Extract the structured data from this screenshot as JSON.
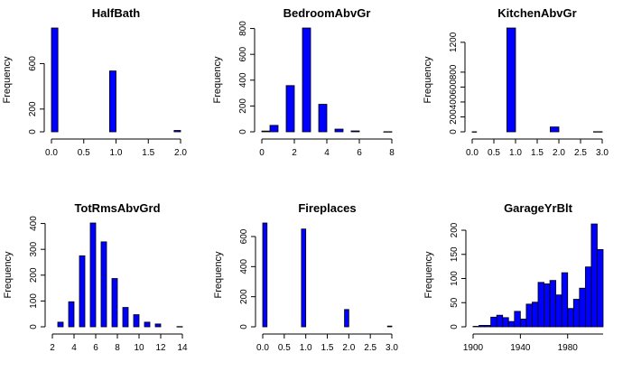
{
  "colors": {
    "bar_fill": "#0000ff",
    "bar_stroke": "#000000",
    "axis": "#000000"
  },
  "chart_data": [
    {
      "type": "bar",
      "title": "HalfBath",
      "xlabel": "",
      "ylabel": "Frequency",
      "xlim": [
        0,
        2
      ],
      "ylim": [
        0,
        913
      ],
      "xticks": [
        "0.0",
        "0.5",
        "1.0",
        "1.5",
        "2.0"
      ],
      "yticks": [
        "0",
        "200",
        "600"
      ],
      "bins": [
        {
          "x0": 0.0,
          "x1": 0.1,
          "count": 913
        },
        {
          "x0": 0.9,
          "x1": 1.0,
          "count": 535
        },
        {
          "x0": 1.9,
          "x1": 2.0,
          "count": 12
        }
      ]
    },
    {
      "type": "bar",
      "title": "BedroomAbvGr",
      "xlabel": "",
      "ylabel": "Frequency",
      "xlim": [
        0,
        8
      ],
      "ylim": [
        0,
        804
      ],
      "xticks": [
        "0",
        "2",
        "4",
        "6",
        "8"
      ],
      "yticks": [
        "0",
        "200",
        "400",
        "600",
        "800"
      ],
      "bins": [
        {
          "x0": 0.0,
          "x1": 0.5,
          "count": 6
        },
        {
          "x0": 0.5,
          "x1": 1.0,
          "count": 50
        },
        {
          "x0": 1.5,
          "x1": 2.0,
          "count": 358
        },
        {
          "x0": 2.5,
          "x1": 3.0,
          "count": 804
        },
        {
          "x0": 3.5,
          "x1": 4.0,
          "count": 213
        },
        {
          "x0": 4.5,
          "x1": 5.0,
          "count": 21
        },
        {
          "x0": 5.5,
          "x1": 6.0,
          "count": 7
        },
        {
          "x0": 7.5,
          "x1": 8.0,
          "count": 1
        }
      ]
    },
    {
      "type": "bar",
      "title": "KitchenAbvGr",
      "xlabel": "",
      "ylabel": "Frequency",
      "xlim": [
        0,
        3
      ],
      "ylim": [
        0,
        1392
      ],
      "xticks": [
        "0.0",
        "0.5",
        "1.0",
        "1.5",
        "2.0",
        "2.5",
        "3.0"
      ],
      "yticks": [
        "0",
        "200",
        "400",
        "600",
        "800",
        "1200"
      ],
      "bins": [
        {
          "x0": 0.0,
          "x1": 0.1,
          "count": 1
        },
        {
          "x0": 0.8,
          "x1": 1.0,
          "count": 1392
        },
        {
          "x0": 1.8,
          "x1": 2.0,
          "count": 65
        },
        {
          "x0": 2.8,
          "x1": 3.0,
          "count": 2
        }
      ]
    },
    {
      "type": "bar",
      "title": "TotRmsAbvGrd",
      "xlabel": "",
      "ylabel": "Frequency",
      "xlim": [
        2,
        14
      ],
      "ylim": [
        0,
        402
      ],
      "xticks": [
        "2",
        "4",
        "6",
        "8",
        "10",
        "12",
        "14"
      ],
      "yticks": [
        "0",
        "100",
        "200",
        "300",
        "400"
      ],
      "bins": [
        {
          "x0": 2.5,
          "x1": 3.0,
          "count": 18
        },
        {
          "x0": 3.5,
          "x1": 4.0,
          "count": 97
        },
        {
          "x0": 4.5,
          "x1": 5.0,
          "count": 275
        },
        {
          "x0": 5.5,
          "x1": 6.0,
          "count": 402
        },
        {
          "x0": 6.5,
          "x1": 7.0,
          "count": 329
        },
        {
          "x0": 7.5,
          "x1": 8.0,
          "count": 187
        },
        {
          "x0": 8.5,
          "x1": 9.0,
          "count": 75
        },
        {
          "x0": 9.5,
          "x1": 10.0,
          "count": 47
        },
        {
          "x0": 10.5,
          "x1": 11.0,
          "count": 18
        },
        {
          "x0": 11.5,
          "x1": 12.0,
          "count": 11
        },
        {
          "x0": 13.5,
          "x1": 14.0,
          "count": 1
        }
      ]
    },
    {
      "type": "bar",
      "title": "Fireplaces",
      "xlabel": "",
      "ylabel": "Frequency",
      "xlim": [
        0,
        3
      ],
      "ylim": [
        0,
        690
      ],
      "xticks": [
        "0.0",
        "0.5",
        "1.0",
        "1.5",
        "2.0",
        "2.5",
        "3.0"
      ],
      "yticks": [
        "0",
        "200",
        "400",
        "600"
      ],
      "bins": [
        {
          "x0": 0.0,
          "x1": 0.1,
          "count": 690
        },
        {
          "x0": 0.9,
          "x1": 1.0,
          "count": 650
        },
        {
          "x0": 1.9,
          "x1": 2.0,
          "count": 115
        },
        {
          "x0": 2.9,
          "x1": 3.0,
          "count": 5
        }
      ]
    },
    {
      "type": "bar",
      "title": "GarageYrBlt",
      "xlabel": "",
      "ylabel": "Frequency",
      "xlim": [
        1900,
        2010
      ],
      "ylim": [
        0,
        215
      ],
      "xticks": [
        "1900",
        "1940",
        "1980"
      ],
      "yticks": [
        "0",
        "50",
        "100",
        "150",
        "200"
      ],
      "bins": [
        {
          "x0": 1900,
          "x1": 1905,
          "count": 1
        },
        {
          "x0": 1905,
          "x1": 1910,
          "count": 3
        },
        {
          "x0": 1910,
          "x1": 1915,
          "count": 3
        },
        {
          "x0": 1915,
          "x1": 1920,
          "count": 20
        },
        {
          "x0": 1920,
          "x1": 1925,
          "count": 24
        },
        {
          "x0": 1925,
          "x1": 1930,
          "count": 19
        },
        {
          "x0": 1930,
          "x1": 1935,
          "count": 11
        },
        {
          "x0": 1935,
          "x1": 1940,
          "count": 32
        },
        {
          "x0": 1940,
          "x1": 1945,
          "count": 16
        },
        {
          "x0": 1945,
          "x1": 1950,
          "count": 47
        },
        {
          "x0": 1950,
          "x1": 1955,
          "count": 51
        },
        {
          "x0": 1955,
          "x1": 1960,
          "count": 92
        },
        {
          "x0": 1960,
          "x1": 1965,
          "count": 89
        },
        {
          "x0": 1965,
          "x1": 1970,
          "count": 96
        },
        {
          "x0": 1970,
          "x1": 1975,
          "count": 66
        },
        {
          "x0": 1975,
          "x1": 1980,
          "count": 112
        },
        {
          "x0": 1980,
          "x1": 1985,
          "count": 38
        },
        {
          "x0": 1985,
          "x1": 1990,
          "count": 57
        },
        {
          "x0": 1990,
          "x1": 1995,
          "count": 80
        },
        {
          "x0": 1995,
          "x1": 2000,
          "count": 124
        },
        {
          "x0": 2000,
          "x1": 2005,
          "count": 213
        },
        {
          "x0": 2005,
          "x1": 2010,
          "count": 160
        }
      ]
    }
  ]
}
